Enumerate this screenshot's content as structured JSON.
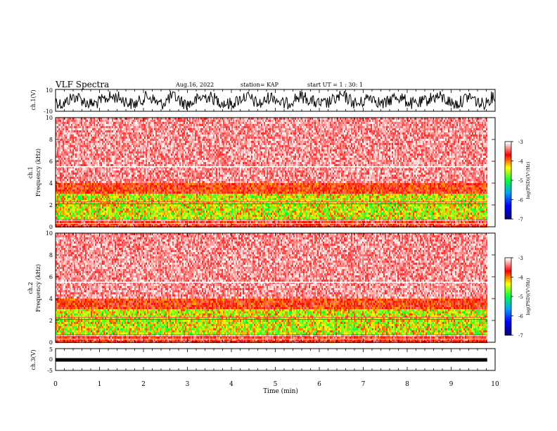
{
  "header": {
    "title": "VLF Spectra",
    "date": "Aug.16, 2022",
    "station": "station= KAP",
    "start": "start UT =  1 : 30: 1"
  },
  "chart_data": [
    {
      "type": "line",
      "name": "ch1-waveform",
      "ylabel": "ch.1(V)",
      "ylim": [
        -10,
        10
      ],
      "ytick_labels": [
        "10",
        "-10"
      ],
      "xlim": [
        0,
        10
      ]
    },
    {
      "type": "heatmap",
      "name": "ch1-spectrogram",
      "ylabel": "ch.1\nFrequency (kHz)",
      "ylim": [
        0,
        10
      ],
      "yticks": [
        0,
        2,
        4,
        6,
        8,
        10
      ],
      "xlim": [
        0,
        10
      ],
      "data_extent_min": 9.82,
      "colorbar": {
        "label": "log(PSD)(V²/Hz)",
        "range": [
          -7,
          -3
        ],
        "ticks": [
          "-3",
          "-4",
          "-5",
          "-6",
          "-7"
        ]
      }
    },
    {
      "type": "heatmap",
      "name": "ch2-spectrogram",
      "ylabel": "ch.2\nFrequency (kHz)",
      "ylim": [
        0,
        10
      ],
      "yticks": [
        0,
        2,
        4,
        6,
        8,
        10
      ],
      "xlim": [
        0,
        10
      ],
      "data_extent_min": 9.82,
      "colorbar": {
        "label": "log(PSD)(V²/Hz)",
        "range": [
          -7,
          -3
        ],
        "ticks": [
          "-3",
          "-4",
          "-5",
          "-6",
          "-7"
        ]
      }
    },
    {
      "type": "line",
      "name": "ch3-waveform",
      "ylabel": "ch.3(V)",
      "ylim": [
        -5,
        5
      ],
      "ytick_labels": [
        "5",
        "0",
        "-5"
      ],
      "xlim": [
        0,
        10
      ],
      "xlabel": "Time (min)",
      "xticks": [
        "0",
        "1",
        "2",
        "3",
        "4",
        "5",
        "6",
        "7",
        "8",
        "9",
        "10"
      ]
    }
  ],
  "colors": {
    "colormap": [
      "#000080",
      "#0000ff",
      "#00a0ff",
      "#00ff40",
      "#ffff00",
      "#ff0000",
      "#ffffff"
    ]
  }
}
